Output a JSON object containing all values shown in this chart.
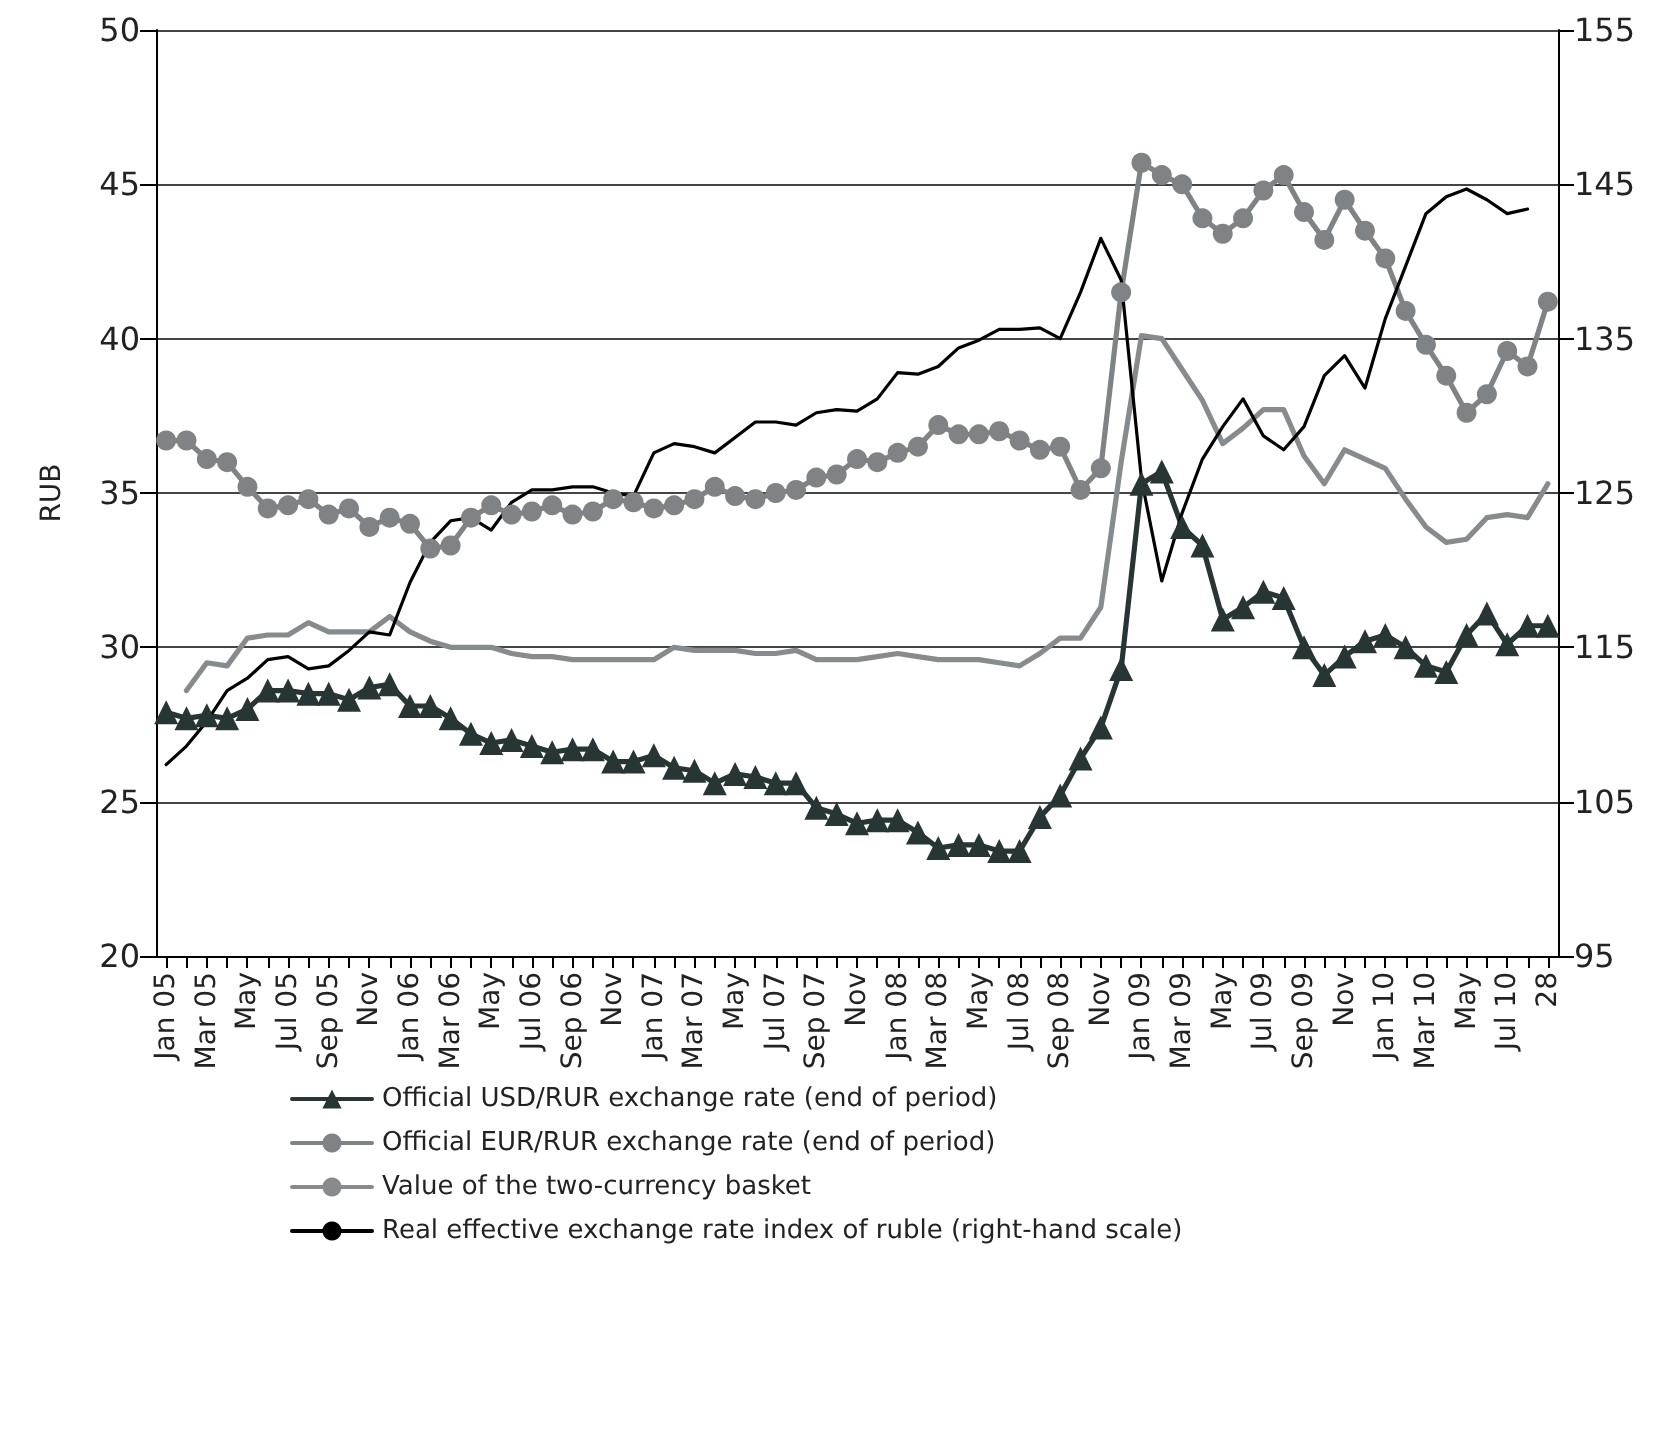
{
  "chart_data": {
    "type": "line",
    "ylabel": "RUB",
    "categories": [
      "Jan 05",
      null,
      "Mar 05",
      null,
      "May",
      null,
      "Jul 05",
      null,
      "Sep 05",
      null,
      "Nov",
      null,
      "Jan 06",
      null,
      "Mar 06",
      null,
      "May",
      null,
      "Jul 06",
      null,
      "Sep 06",
      null,
      "Nov",
      null,
      "Jan 07",
      null,
      "Mar 07",
      null,
      "May",
      null,
      "Jul 07",
      null,
      "Sep 07",
      null,
      "Nov",
      null,
      "Jan 08",
      null,
      "Mar 08",
      null,
      "May",
      null,
      "Jul 08",
      null,
      "Sep 08",
      null,
      "Nov",
      null,
      "Jan 09",
      null,
      "Mar 09",
      null,
      "May",
      null,
      "Jul 09",
      null,
      "Sep 09",
      null,
      "Nov",
      null,
      "Jan 10",
      null,
      "Mar 10",
      null,
      "May",
      null,
      "Jul 10",
      null,
      "28"
    ],
    "series": [
      {
        "name": "Official USD/RUR exchange rate (end of period)",
        "color": "#283535",
        "marker": "triangle",
        "values": [
          27.9,
          27.7,
          27.8,
          27.7,
          28.0,
          28.6,
          28.6,
          28.5,
          28.5,
          28.3,
          28.7,
          28.8,
          28.1,
          28.1,
          27.7,
          27.2,
          26.9,
          27.0,
          26.8,
          26.6,
          26.7,
          26.7,
          26.3,
          26.3,
          26.5,
          26.1,
          26.0,
          25.6,
          25.9,
          25.8,
          25.6,
          25.6,
          24.8,
          24.6,
          24.3,
          24.4,
          24.4,
          24.0,
          23.5,
          23.6,
          23.6,
          23.4,
          23.4,
          24.5,
          25.2,
          26.4,
          27.4,
          29.3,
          35.3,
          35.7,
          33.9,
          33.3,
          30.9,
          31.3,
          31.8,
          31.6,
          30.0,
          29.1,
          29.7,
          30.2,
          30.4,
          30.0,
          29.4,
          29.2,
          30.4,
          31.1,
          30.1,
          30.7,
          30.7
        ]
      },
      {
        "name": "Official EUR/RUR exchange rate (end of period)",
        "color": "#7f8385",
        "marker": "circle",
        "values": [
          36.7,
          36.7,
          36.1,
          36.0,
          35.2,
          34.5,
          34.6,
          34.8,
          34.3,
          34.5,
          33.9,
          34.2,
          34.0,
          33.2,
          33.3,
          34.2,
          34.6,
          34.3,
          34.4,
          34.6,
          34.3,
          34.4,
          34.8,
          34.7,
          34.5,
          34.6,
          34.8,
          35.2,
          34.9,
          34.8,
          35.0,
          35.1,
          35.5,
          35.6,
          36.1,
          36.0,
          36.3,
          36.5,
          37.2,
          36.9,
          36.9,
          37.0,
          36.7,
          36.4,
          36.5,
          35.1,
          35.8,
          41.5,
          45.7,
          45.3,
          45.0,
          43.9,
          43.4,
          43.9,
          44.8,
          45.3,
          44.1,
          43.2,
          44.5,
          43.5,
          42.6,
          40.9,
          39.8,
          38.8,
          37.6,
          38.2,
          39.6,
          39.1,
          41.2
        ]
      },
      {
        "name": "Value of the two-currency basket",
        "color": "#888b8d",
        "marker": "none",
        "values": [
          null,
          28.6,
          29.5,
          29.4,
          30.3,
          30.4,
          30.4,
          30.8,
          30.5,
          30.5,
          30.5,
          31.0,
          30.5,
          30.2,
          30.0,
          30.0,
          30.0,
          29.8,
          29.7,
          29.7,
          29.6,
          29.6,
          29.6,
          29.6,
          29.6,
          30.0,
          29.9,
          29.9,
          29.9,
          29.8,
          29.8,
          29.9,
          29.6,
          29.6,
          29.6,
          29.7,
          29.8,
          29.7,
          29.6,
          29.6,
          29.6,
          29.5,
          29.4,
          29.8,
          30.3,
          30.3,
          31.3,
          36.0,
          40.1,
          40.0,
          39.0,
          38.0,
          36.6,
          37.1,
          37.7,
          37.7,
          36.2,
          35.3,
          36.4,
          36.1,
          35.8,
          34.8,
          33.9,
          33.4,
          33.5,
          34.2,
          34.3,
          34.2,
          35.3
        ]
      },
      {
        "name": "Real effective exchange rate index of ruble (right-hand scale)",
        "color": "#000000",
        "marker": "none",
        "axis": "y2",
        "values": [
          107.4,
          108.6,
          110.2,
          112.2,
          113,
          114.2,
          114.4,
          113.6,
          113.8,
          114.8,
          116,
          115.8,
          119.2,
          121.8,
          123.2,
          123.4,
          122.6,
          124.4,
          125.2,
          125.2,
          125.4,
          125.4,
          125,
          124.8,
          127.6,
          128.2,
          128,
          127.6,
          128.6,
          129.6,
          129.6,
          129.4,
          130.2,
          130.4,
          130.3,
          131.1,
          132.8,
          132.7,
          133.2,
          134.4,
          134.9,
          135.6,
          135.6,
          135.7,
          135,
          138,
          141.5,
          138.8,
          125.9,
          119.3,
          123.7,
          127.2,
          129.3,
          131.1,
          128.7,
          127.8,
          129.3,
          132.6,
          133.9,
          131.8,
          136.3,
          139.7,
          143.1,
          144.2,
          144.7,
          144,
          143.1,
          143.4,
          null
        ]
      }
    ],
    "ylim": [
      20,
      50
    ],
    "yticks": [
      20,
      25,
      30,
      35,
      40,
      45,
      50
    ],
    "y2lim": [
      95,
      155
    ],
    "y2ticks": [
      95,
      105,
      115,
      125,
      135,
      145,
      155
    ],
    "grid": "y",
    "legend": "bottom"
  }
}
